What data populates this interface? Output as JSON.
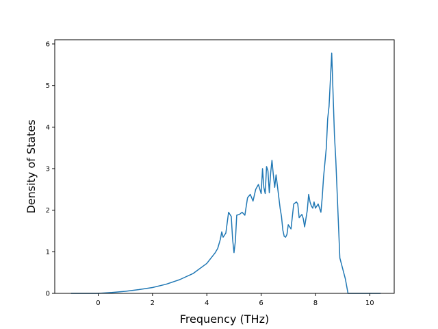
{
  "chart_data": {
    "type": "line",
    "xlabel": "Frequency (THz)",
    "ylabel": "Density of States",
    "xlim": [
      -1.6,
      10.9
    ],
    "ylim": [
      0,
      6.1
    ],
    "xticks": [
      0,
      2,
      4,
      6,
      8,
      10
    ],
    "yticks": [
      0,
      1,
      2,
      3,
      4,
      5,
      6
    ],
    "grid": false,
    "line_color": "#1f77b4",
    "series": [
      {
        "x": [
          -1.0,
          0.0,
          0.5,
          1.0,
          1.5,
          2.0,
          2.5,
          3.0,
          3.5,
          4.0,
          4.3,
          4.4,
          4.5,
          4.55,
          4.6,
          4.7,
          4.8,
          4.9,
          4.95,
          5.0,
          5.05,
          5.1,
          5.2,
          5.3,
          5.4,
          5.5,
          5.6,
          5.7,
          5.8,
          5.9,
          6.0,
          6.05,
          6.1,
          6.15,
          6.2,
          6.25,
          6.3,
          6.35,
          6.4,
          6.45,
          6.5,
          6.55,
          6.6,
          6.7,
          6.75,
          6.8,
          6.85,
          6.9,
          6.95,
          7.0,
          7.1,
          7.2,
          7.3,
          7.35,
          7.4,
          7.5,
          7.55,
          7.6,
          7.7,
          7.75,
          7.8,
          7.85,
          7.9,
          7.95,
          8.0,
          8.1,
          8.2,
          8.25,
          8.3,
          8.4,
          8.45,
          8.5,
          8.6,
          8.7,
          8.75,
          8.8,
          8.85,
          8.9,
          9.0,
          9.1,
          9.2,
          9.3,
          9.4,
          9.5,
          10.0,
          10.4
        ],
        "y": [
          0.0,
          0.0,
          0.02,
          0.05,
          0.09,
          0.14,
          0.22,
          0.33,
          0.48,
          0.72,
          0.97,
          1.08,
          1.3,
          1.48,
          1.35,
          1.45,
          1.95,
          1.85,
          1.3,
          0.98,
          1.25,
          1.88,
          1.9,
          1.95,
          1.88,
          2.3,
          2.38,
          2.22,
          2.5,
          2.62,
          2.4,
          3.0,
          2.55,
          2.4,
          3.05,
          2.95,
          2.42,
          2.9,
          3.2,
          2.85,
          2.55,
          2.85,
          2.58,
          2.05,
          1.85,
          1.52,
          1.37,
          1.35,
          1.42,
          1.65,
          1.55,
          2.15,
          2.2,
          2.15,
          1.82,
          1.9,
          1.8,
          1.6,
          2.0,
          2.38,
          2.2,
          2.1,
          2.05,
          2.2,
          2.05,
          2.15,
          1.95,
          2.3,
          2.8,
          3.5,
          4.2,
          4.5,
          5.78,
          3.8,
          3.2,
          2.4,
          1.6,
          0.85,
          0.6,
          0.35,
          0.0,
          0.0,
          0.0,
          0.0,
          0.0,
          0.0
        ]
      }
    ]
  }
}
